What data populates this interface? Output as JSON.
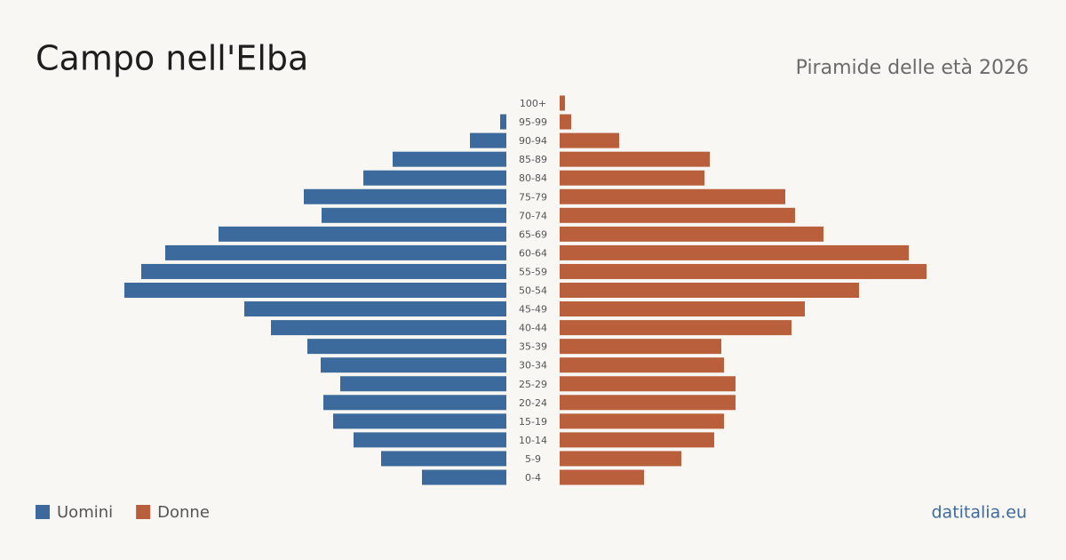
{
  "chart_data": {
    "type": "pyramid",
    "title": "Campo nell'Elba",
    "subtitle": "Piramide delle età 2026",
    "source": "datitalia.eu",
    "categories": [
      "100+",
      "95-99",
      "90-94",
      "85-89",
      "80-84",
      "75-79",
      "70-74",
      "65-69",
      "60-64",
      "55-59",
      "50-54",
      "45-49",
      "40-44",
      "35-39",
      "30-34",
      "25-29",
      "20-24",
      "15-19",
      "10-14",
      "5-9",
      "0-4"
    ],
    "series": [
      {
        "name": "Uomini",
        "color": "#3d6a9c",
        "values": [
          0,
          7,
          41,
          128,
          161,
          228,
          208,
          324,
          384,
          411,
          430,
          295,
          265,
          224,
          209,
          187,
          206,
          195,
          172,
          141,
          95
        ]
      },
      {
        "name": "Donne",
        "color": "#b95f3c",
        "values": [
          6,
          13,
          67,
          169,
          163,
          254,
          265,
          297,
          393,
          413,
          337,
          276,
          261,
          182,
          185,
          198,
          198,
          185,
          174,
          137,
          95
        ]
      }
    ]
  }
}
